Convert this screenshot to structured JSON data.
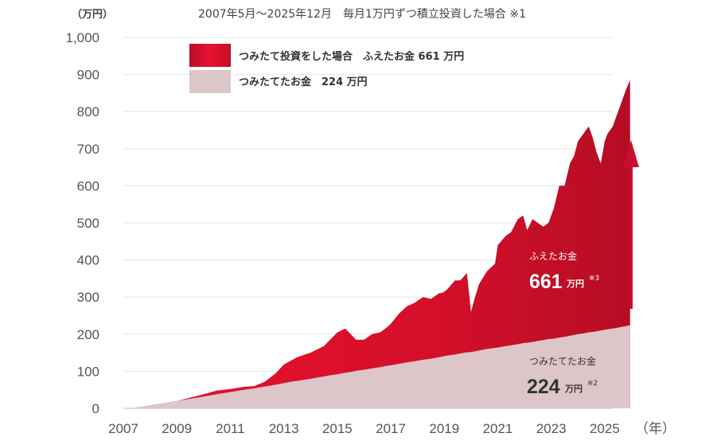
{
  "chart_data": {
    "type": "area",
    "title": "2007年5月～2025年12月　毎月1万円ずつ積立投資した場合 ※1",
    "y_unit": "（万円）",
    "x_unit": "（年）",
    "ylim": [
      0,
      1000
    ],
    "y_ticks": [
      "0",
      "100",
      "200",
      "300",
      "400",
      "500",
      "600",
      "700",
      "800",
      "900",
      "1,000"
    ],
    "x_ticks": [
      "2007",
      "2009",
      "2011",
      "2013",
      "2015",
      "2017",
      "2019",
      "2021",
      "2023",
      "2025"
    ],
    "grid": true,
    "legend_position": "top-left",
    "x": [
      2007.37,
      2008.0,
      2009.0,
      2010.0,
      2010.5,
      2011.0,
      2011.5,
      2011.9,
      2012.3,
      2012.7,
      2013.0,
      2013.3,
      2013.5,
      2014.0,
      2014.5,
      2014.8,
      2015.0,
      2015.3,
      2015.5,
      2015.7,
      2016.0,
      2016.3,
      2016.6,
      2016.8,
      2017.0,
      2017.3,
      2017.6,
      2017.9,
      2018.2,
      2018.5,
      2018.8,
      2018.95,
      2019.1,
      2019.4,
      2019.6,
      2019.85,
      2020.0,
      2020.15,
      2020.3,
      2020.6,
      2020.9,
      2021.0,
      2021.3,
      2021.5,
      2021.75,
      2021.95,
      2022.1,
      2022.3,
      2022.5,
      2022.7,
      2022.9,
      2023.1,
      2023.3,
      2023.5,
      2023.7,
      2023.85,
      2024.0,
      2024.2,
      2024.4,
      2024.55,
      2024.7,
      2024.85,
      2025.0,
      2025.1,
      2025.3,
      2025.45,
      2025.6,
      2025.8,
      2025.95
    ],
    "series": [
      {
        "name": "つみたて投資をした場合　ふえたお金 661 万円",
        "color": "#c8102e",
        "values": [
          1,
          8,
          20,
          38,
          48,
          52,
          58,
          60,
          72,
          95,
          118,
          130,
          138,
          150,
          168,
          190,
          205,
          215,
          200,
          185,
          185,
          200,
          205,
          215,
          228,
          255,
          275,
          285,
          300,
          295,
          310,
          312,
          320,
          345,
          345,
          365,
          260,
          300,
          335,
          370,
          390,
          440,
          465,
          475,
          510,
          520,
          480,
          510,
          500,
          490,
          500,
          540,
          600,
          600,
          660,
          680,
          720,
          740,
          760,
          730,
          690,
          660,
          720,
          740,
          760,
          790,
          820,
          860,
          885
        ]
      },
      {
        "name": "つみたてたお金　224 万円",
        "color": "#dcc6c9",
        "values": [
          1,
          8,
          20,
          32,
          38,
          44,
          50,
          54,
          59,
          64,
          68,
          72,
          74,
          80,
          86,
          90,
          92,
          96,
          98,
          101,
          104,
          108,
          111,
          114,
          116,
          120,
          124,
          127,
          131,
          134,
          138,
          140,
          142,
          145,
          148,
          151,
          152,
          154,
          156,
          160,
          163,
          164,
          168,
          170,
          173,
          176,
          177,
          179,
          182,
          184,
          187,
          188,
          191,
          193,
          196,
          198,
          200,
          202,
          205,
          206,
          208,
          210,
          212,
          213,
          215,
          217,
          219,
          222,
          224
        ]
      }
    ],
    "annotations": [
      {
        "label": "ふえたお金",
        "value": "661",
        "unit": "万円",
        "note": "※3"
      },
      {
        "label": "つみたてたお金",
        "value": "224",
        "unit": "万円",
        "note": "※2"
      }
    ]
  }
}
